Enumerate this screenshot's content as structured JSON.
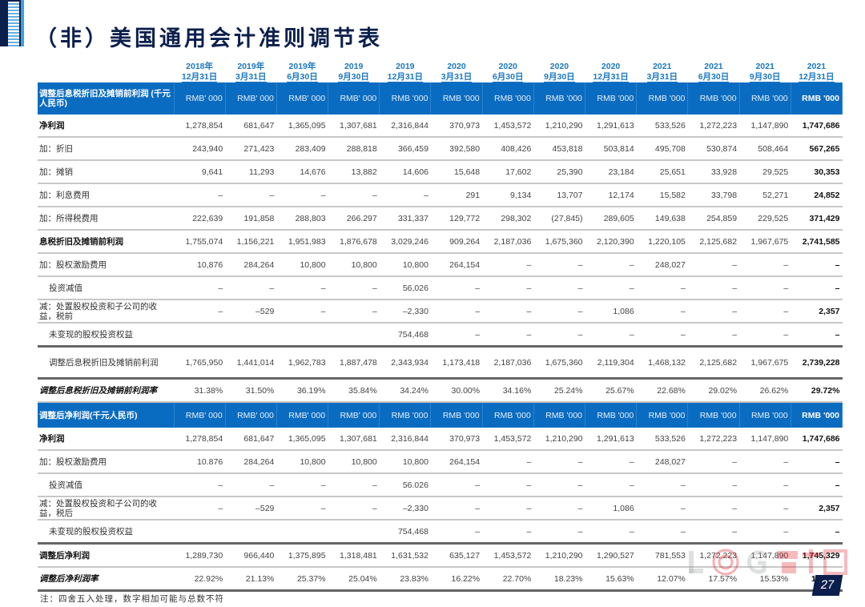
{
  "title": "（非）美国通用会计准则调节表",
  "columns": [
    [
      "2018年",
      "12月31日"
    ],
    [
      "2019年",
      "3月31日"
    ],
    [
      "2019年",
      "6月30日"
    ],
    [
      "2019",
      "9月30日"
    ],
    [
      "2019",
      "12月31日"
    ],
    [
      "2020",
      "3月31日"
    ],
    [
      "2020",
      "6月30日"
    ],
    [
      "2020",
      "9月30日"
    ],
    [
      "2020",
      "12月31日"
    ],
    [
      "2021",
      "3月31日"
    ],
    [
      "2021",
      "6月30日"
    ],
    [
      "2021",
      "9月30日"
    ],
    [
      "2021",
      "12月31日"
    ]
  ],
  "section1": {
    "header_label": "调整后息税折旧及摊销前利润 (千元人民币)",
    "units": [
      "RMB' 000",
      "RMB' 000",
      "RMB' 000",
      "RMB' 000",
      "RMB '000",
      "RMB '000",
      "RMB '000",
      "RMB '000",
      "RMB '000",
      "RMB '000",
      "RMB '000",
      "RMB '000",
      "RMB '000"
    ],
    "rows": [
      {
        "label": "净利润",
        "style": "bold",
        "values": [
          "1,278,854",
          "681,647",
          "1,365,095",
          "1,307,681",
          "2,316,844",
          "370,973",
          "1,453,572",
          "1,210,290",
          "1,291,613",
          "533,526",
          "1,272,223",
          "1,147,890",
          "1,747,686"
        ]
      },
      {
        "label": "加：折旧",
        "values": [
          "243,940",
          "271,423",
          "283,409",
          "288,818",
          "366,459",
          "392,580",
          "408,426",
          "453,818",
          "503,814",
          "495,708",
          "530,874",
          "508,464",
          "567,265"
        ]
      },
      {
        "label": "加：摊销",
        "values": [
          "9,641",
          "11,293",
          "14,676",
          "13,882",
          "14,606",
          "15,648",
          "17,602",
          "25,390",
          "23,184",
          "25,651",
          "33,928",
          "29,525",
          "30,353"
        ]
      },
      {
        "label": "加：利息费用",
        "values": [
          "–",
          "–",
          "–",
          "–",
          "–",
          "291",
          "9,134",
          "13,707",
          "12,174",
          "15,582",
          "33,798",
          "52,271",
          "24,852"
        ]
      },
      {
        "label": "加：所得税费用",
        "values": [
          "222,639",
          "191,858",
          "288,803",
          "266.297",
          "331,337",
          "129,772",
          "298,302",
          "(27,845)",
          "289,605",
          "149,638",
          "254,859",
          "229,525",
          "371,429"
        ]
      },
      {
        "label": "息税折旧及摊销前利润",
        "style": "bold",
        "values": [
          "1,755,074",
          "1,156,221",
          "1,951,983",
          "1,876,678",
          "3,029,246",
          "909,264",
          "2,187,036",
          "1,675,360",
          "2,120,390",
          "1,220,105",
          "2,125,682",
          "1,967,675",
          "2,741,585"
        ]
      },
      {
        "label": "加：股权激励费用",
        "values": [
          "10,876",
          "284,264",
          "10,800",
          "10,800",
          "10,800",
          "264,154",
          "–",
          "–",
          "–",
          "248,027",
          "–",
          "–",
          "–"
        ]
      },
      {
        "label": "投资减值",
        "style": "indent",
        "values": [
          "–",
          "–",
          "–",
          "–",
          "56,026",
          "–",
          "–",
          "–",
          "–",
          "–",
          "–",
          "–",
          "–"
        ]
      },
      {
        "label": "减：处置股权投资和子公司的收益，税前",
        "values": [
          "–",
          "–529",
          "–",
          "–",
          "–2,330",
          "–",
          "–",
          "–",
          "1,086",
          "–",
          "–",
          "–",
          "2,357"
        ]
      },
      {
        "label": "未变现的股权投资权益",
        "style": "indent thick",
        "values": [
          "",
          "",
          "",
          "",
          "754,468",
          "–",
          "–",
          "–",
          "–",
          "–",
          "–",
          "–",
          "–"
        ]
      },
      {
        "label": "调整后息税折旧及摊销前利润",
        "style": "indent tall thick",
        "values": [
          "1,765,950",
          "1,441,014",
          "1,962,783",
          "1,887,478",
          "2,343,934",
          "1,173,418",
          "2,187,036",
          "1,675,360",
          "2,119,304",
          "1,468,132",
          "2,125,682",
          "1,967,675",
          "2,739,228"
        ]
      },
      {
        "label": "调整后息税折旧及摊销前利润率",
        "style": "bi",
        "values": [
          "31.38%",
          "31.50%",
          "36.19%",
          "35.84%",
          "34.24%",
          "30.00%",
          "34.16%",
          "25.24%",
          "25.67%",
          "22.68%",
          "29.02%",
          "26.62%",
          "29.72%"
        ]
      }
    ]
  },
  "section2": {
    "header_label": "调整后净利润(千元人民币)",
    "units": [
      "RMB' 000",
      "RMB' 000",
      "RMB' 000",
      "RMB' 000",
      "RMB '000",
      "RMB '000",
      "RMB '000",
      "RMB '000",
      "RMB '000",
      "RMB '000",
      "RMB '000",
      "RMB '000",
      "RMB '000"
    ],
    "rows": [
      {
        "label": "净利润",
        "style": "bold",
        "values": [
          "1,278,854",
          "681,647",
          "1,365,095",
          "1,307,681",
          "2,316,844",
          "370,973",
          "1,453,572",
          "1,210,290",
          "1,291,613",
          "533,526",
          "1,272,223",
          "1,147,890",
          "1,747,686"
        ]
      },
      {
        "label": "加：股权激励费用",
        "values": [
          "10.876",
          "284,264",
          "10,800",
          "10,800",
          "10,800",
          "264,154",
          "–",
          "–",
          "–",
          "248,027",
          "–",
          "–",
          "–"
        ]
      },
      {
        "label": "投资减值",
        "style": "indent",
        "values": [
          "–",
          "–",
          "–",
          "–",
          "56.026",
          "–",
          "–",
          "–",
          "–",
          "–",
          "–",
          "–",
          "–"
        ]
      },
      {
        "label": "减：处置股权投资和子公司的收益，税后",
        "values": [
          "–",
          "–529",
          "–",
          "–",
          "–2,330",
          "–",
          "–",
          "–",
          "1,086",
          "–",
          "–",
          "–",
          "2,357"
        ]
      },
      {
        "label": "未变现的股权投资权益",
        "style": "indent thick",
        "values": [
          "",
          "",
          "",
          "",
          "754,468",
          "–",
          "–",
          "–",
          "–",
          "–",
          "–",
          "–",
          "–"
        ]
      },
      {
        "label": "调整后净利润",
        "style": "bold",
        "values": [
          "1,289,730",
          "966,440",
          "1,375,895",
          "1,318,481",
          "1,631,532",
          "635,127",
          "1,453,572",
          "1,210,290",
          "1,290,527",
          "781,553",
          "1,272,223",
          "1,147,890",
          "1,745,329"
        ]
      },
      {
        "label": "调整后净利润率",
        "style": "bi thick",
        "values": [
          "22.92%",
          "21.13%",
          "25.37%",
          "25.04%",
          "23.83%",
          "16.22%",
          "22.70%",
          "18.23%",
          "15.63%",
          "12.07%",
          "17.57%",
          "15.53%",
          "18.93%"
        ]
      }
    ]
  },
  "footnote": "注：四舍五入处理，数字相加可能与总数不符",
  "page_number": "27",
  "watermark": "LOG罗戈网",
  "colors": {
    "header_blue": "#0a6cc1",
    "title_navy": "#0b1f4d",
    "date_blue": "#1a78c2"
  }
}
